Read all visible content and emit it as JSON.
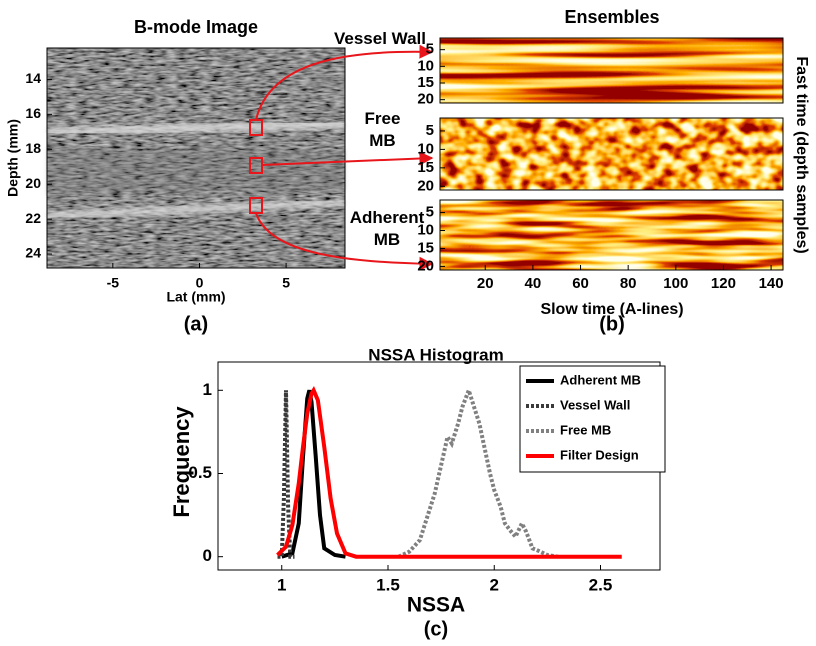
{
  "chart_data": [
    {
      "type": "image",
      "title": "B-mode Image",
      "xlabel": "Lat (mm)",
      "ylabel": "Depth (mm)",
      "caption": "(a)",
      "xlim": [
        -8.8,
        8.4
      ],
      "ylim": [
        12.2,
        24.8
      ],
      "y_reversed": true,
      "xticks": [
        -5,
        0,
        5
      ],
      "yticks": [
        14,
        16,
        18,
        20,
        22,
        24
      ]
    },
    {
      "type": "heatmap",
      "title": "Ensembles",
      "xlabel": "Slow time (A-lines)",
      "ylabel": "Fast time (depth samples)",
      "caption": "(b)",
      "panels": [
        "Vessel Wall",
        "Free MB",
        "Adherent MB"
      ],
      "colormap": "hot",
      "xlim": [
        1,
        145
      ],
      "xticks": [
        20,
        40,
        60,
        80,
        100,
        120,
        140
      ],
      "ylim": [
        1.5,
        21
      ],
      "y_reversed": true,
      "yticks": [
        5,
        10,
        15,
        20
      ]
    },
    {
      "type": "line",
      "title": "NSSA Histogram",
      "xlabel": "NSSA",
      "ylabel": "Frequency",
      "caption": "(c)",
      "xlim": [
        0.7,
        2.78
      ],
      "ylim": [
        -0.08,
        1.17
      ],
      "xticks": [
        1,
        1.5,
        2,
        2.5
      ],
      "yticks": [
        0,
        0.5,
        1
      ],
      "grid": false,
      "legend": "top-right",
      "series": [
        {
          "name": "Adherent MB",
          "color": "#000000",
          "style": "solid",
          "x": [
            1.0,
            1.05,
            1.08,
            1.1,
            1.12,
            1.13,
            1.14,
            1.16,
            1.18,
            1.2,
            1.25,
            1.3
          ],
          "values": [
            0,
            0.02,
            0.2,
            0.6,
            0.95,
            1,
            0.93,
            0.6,
            0.25,
            0.05,
            0.01,
            0
          ]
        },
        {
          "name": "Vessel Wall",
          "color": "#3a3a3a",
          "style": "dotted",
          "x": [
            0.98,
            1.0,
            1.01,
            1.02,
            1.03,
            1.04,
            1.06
          ],
          "values": [
            0,
            0,
            0.35,
            1,
            0.3,
            0,
            0
          ]
        },
        {
          "name": "Free MB",
          "color": "#808080",
          "style": "dotted",
          "x": [
            1.55,
            1.6,
            1.65,
            1.7,
            1.72,
            1.75,
            1.78,
            1.8,
            1.83,
            1.85,
            1.88,
            1.9,
            1.93,
            1.95,
            1.98,
            2.0,
            2.03,
            2.05,
            2.08,
            2.1,
            2.13,
            2.15,
            2.18,
            2.2,
            2.25,
            2.3
          ],
          "values": [
            0,
            0.03,
            0.1,
            0.3,
            0.38,
            0.55,
            0.72,
            0.68,
            0.8,
            0.9,
            1,
            0.92,
            0.8,
            0.68,
            0.5,
            0.4,
            0.3,
            0.2,
            0.15,
            0.12,
            0.2,
            0.15,
            0.05,
            0.04,
            0.01,
            0
          ]
        },
        {
          "name": "Filter Design",
          "color": "#ff0000",
          "style": "solid",
          "x": [
            0.98,
            1.02,
            1.05,
            1.08,
            1.1,
            1.12,
            1.14,
            1.15,
            1.17,
            1.2,
            1.23,
            1.26,
            1.3,
            1.35,
            1.5,
            2.0,
            2.6
          ],
          "values": [
            0.01,
            0.06,
            0.19,
            0.44,
            0.66,
            0.86,
            0.98,
            1,
            0.94,
            0.66,
            0.35,
            0.14,
            0.02,
            0,
            0,
            0,
            0
          ]
        }
      ]
    }
  ]
}
